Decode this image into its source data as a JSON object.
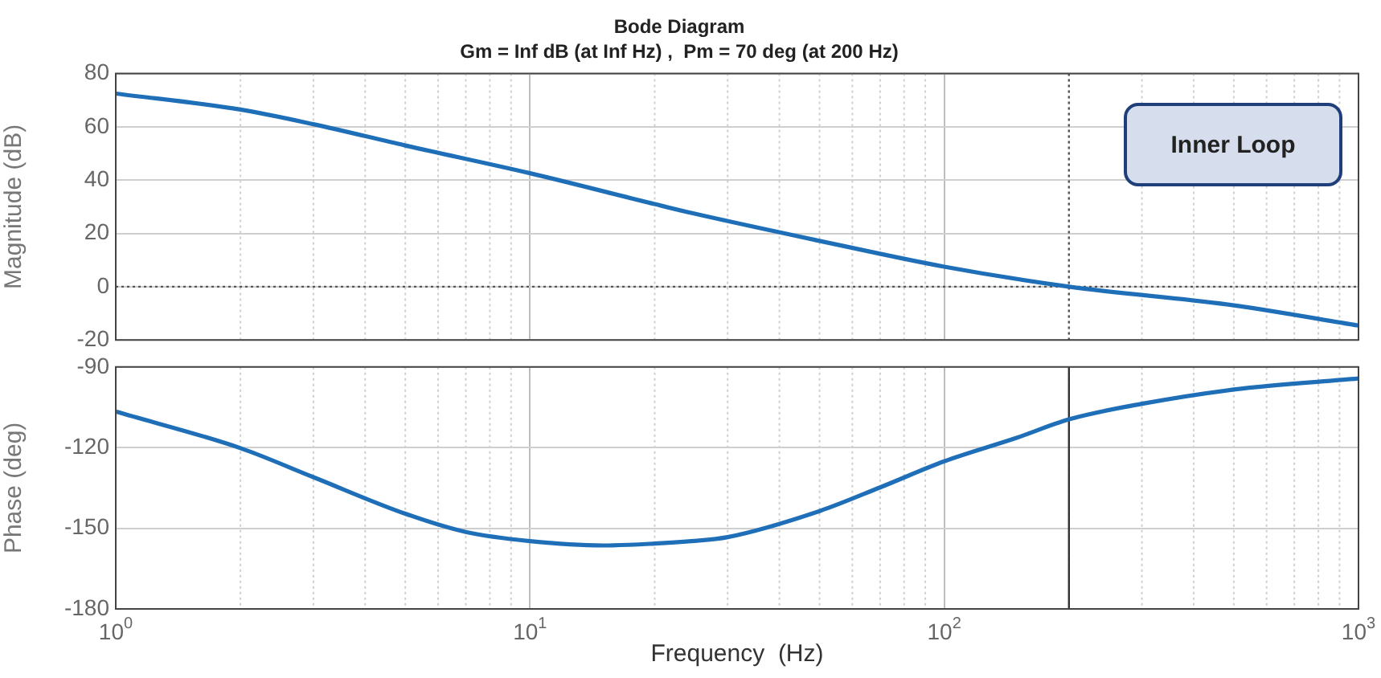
{
  "chart_data": [
    {
      "type": "line",
      "title": "Bode Diagram",
      "subtitle": "Gm = Inf dB (at Inf Hz) ,  Pm = 70 deg (at 200 Hz)",
      "ylabel": "Magnitude (dB)",
      "log": "x",
      "xlim": [
        1,
        1000
      ],
      "xticks": [
        1,
        10,
        100,
        1000
      ],
      "ylim": [
        -20,
        80
      ],
      "yticks": [
        -20,
        0,
        20,
        40,
        60,
        80
      ],
      "tick_labels": "y",
      "grid": true,
      "series": [
        {
          "color": "#1f6fb8",
          "x": [
            1,
            2,
            3,
            5,
            10,
            20,
            24.5,
            50,
            100,
            200,
            500,
            1000
          ],
          "values": [
            72.5,
            66.5,
            61,
            53,
            42.6,
            31,
            27.7,
            17.2,
            7.5,
            0,
            -7,
            -14.6
          ]
        }
      ],
      "ref_lines": [
        {
          "axis": "y",
          "value": 0,
          "line_style": "dotted",
          "color": "#555555"
        },
        {
          "axis": "x",
          "value": 200,
          "line_style": "dotted",
          "color": "#555555"
        }
      ],
      "annotations": [
        "Inner Loop"
      ]
    },
    {
      "type": "line",
      "xlabel": "Frequency  (Hz)",
      "ylabel": "Phase (deg)",
      "log": "x",
      "xlim": [
        1,
        1000
      ],
      "xticks": [
        {
          "value": 1,
          "label": "10$^{0}$"
        },
        {
          "value": 10,
          "label": "10$^{1}$"
        },
        {
          "value": 100,
          "label": "10$^{2}$"
        },
        {
          "value": 1000,
          "label": "10$^{3}$"
        }
      ],
      "ylim": [
        -180,
        -90
      ],
      "yticks": [
        -180,
        -150,
        -120,
        -90
      ],
      "grid": true,
      "series": [
        {
          "color": "#1f6fb8",
          "x": [
            1,
            2,
            3,
            5,
            7,
            10,
            15,
            20,
            24.5,
            30,
            50,
            70,
            100,
            150,
            200,
            300,
            500,
            1000
          ],
          "values": [
            -106.6,
            -120.2,
            -131,
            -144.6,
            -151.4,
            -154.8,
            -156.4,
            -155.7,
            -154.8,
            -153.3,
            -143.6,
            -134.8,
            -125.1,
            -116.3,
            -109.5,
            -103.7,
            -98.4,
            -94.3
          ]
        }
      ],
      "ref_lines": [
        {
          "axis": "x",
          "value": 200,
          "line_style": "solid",
          "color": "#333333"
        }
      ]
    }
  ]
}
